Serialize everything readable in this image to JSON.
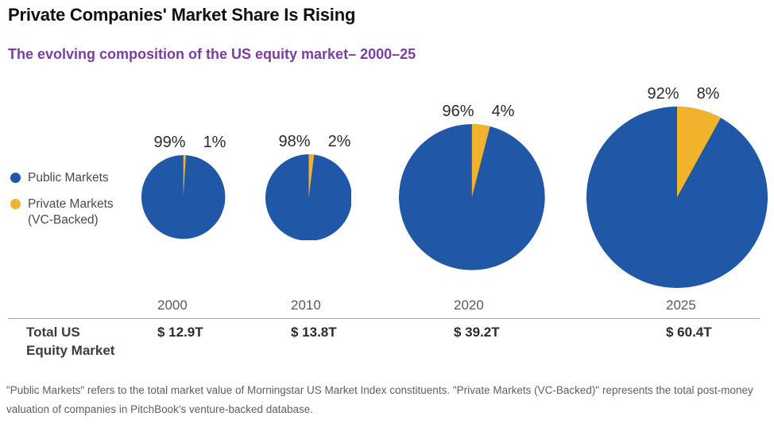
{
  "header": {
    "title": "Private Companies' Market Share Is Rising"
  },
  "subtitle": "The evolving composition of the US equity market– 2000–25",
  "colors": {
    "public": "#2057a7",
    "private": "#f2b32c",
    "subtitle_purple": "#7a3e9e"
  },
  "legend": {
    "public_label": "Public Markets",
    "private_label_line1": "Private Markets",
    "private_label_line2": "(VC-Backed)"
  },
  "table": {
    "row_label_line1": "Total US",
    "row_label_line2": "Equity Market"
  },
  "footnote": "\"Public Markets\" refers to the total market value of Morningstar US Market Index constituents. \"Private Markets (VC-Backed)\" represents the total post-money valuation of companies in PitchBook's venture-backed database.",
  "chart_data": {
    "type": "pie",
    "title": "The evolving composition of the US equity market– 2000–25",
    "legend": [
      "Public Markets",
      "Private Markets (VC-Backed)"
    ],
    "legend_position": "left",
    "note": "Pie area scales with total US equity market value; yellow slice starts at 12 o'clock and sweeps clockwise",
    "categories": [
      "2000",
      "2010",
      "2020",
      "2025"
    ],
    "pies": [
      {
        "year": "2000",
        "slices": [
          {
            "name": "Public Markets",
            "pct": 99
          },
          {
            "name": "Private Markets (VC-Backed)",
            "pct": 1
          }
        ],
        "public_label": "99%",
        "private_label": "1%",
        "total_label": "$ 12.9T",
        "total_trillions": 12.9
      },
      {
        "year": "2010",
        "slices": [
          {
            "name": "Public Markets",
            "pct": 98
          },
          {
            "name": "Private Markets (VC-Backed)",
            "pct": 2
          }
        ],
        "public_label": "98%",
        "private_label": "2%",
        "total_label": "$ 13.8T",
        "total_trillions": 13.8
      },
      {
        "year": "2020",
        "slices": [
          {
            "name": "Public Markets",
            "pct": 96
          },
          {
            "name": "Private Markets (VC-Backed)",
            "pct": 4
          }
        ],
        "public_label": "96%",
        "private_label": "4%",
        "total_label": "$ 39.2T",
        "total_trillions": 39.2
      },
      {
        "year": "2025",
        "slices": [
          {
            "name": "Public Markets",
            "pct": 92
          },
          {
            "name": "Private Markets (VC-Backed)",
            "pct": 8
          }
        ],
        "public_label": "92%",
        "private_label": "8%",
        "total_label": "$ 60.4T",
        "total_trillions": 60.4
      }
    ]
  }
}
